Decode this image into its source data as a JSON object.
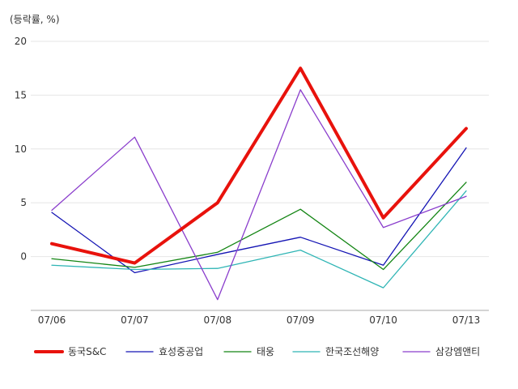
{
  "chart_data": {
    "type": "line",
    "unit_label": "(등락률, %)",
    "categories": [
      "07/06",
      "07/07",
      "07/08",
      "07/09",
      "07/10",
      "07/13"
    ],
    "ylim": [
      -5,
      20
    ],
    "yticks": [
      0,
      5,
      10,
      15,
      20
    ],
    "grid": true,
    "legend_position": "bottom",
    "series": [
      {
        "name": "동국S&C",
        "color": "#e8120c",
        "values": [
          1.2,
          -0.6,
          5.0,
          17.5,
          3.6,
          11.9
        ],
        "emphasis": true
      },
      {
        "name": "효성중공업",
        "color": "#1414b4",
        "values": [
          4.1,
          -1.5,
          0.2,
          1.8,
          -0.8,
          10.1
        ]
      },
      {
        "name": "태웅",
        "color": "#138513",
        "values": [
          -0.2,
          -1.0,
          0.4,
          4.4,
          -1.2,
          6.9
        ]
      },
      {
        "name": "한국조선해양",
        "color": "#2fb5b5",
        "values": [
          -0.8,
          -1.2,
          -1.1,
          0.6,
          -2.9,
          6.1
        ]
      },
      {
        "name": "삼강엠앤티",
        "color": "#8a3dcc",
        "values": [
          4.3,
          11.1,
          -4.0,
          15.5,
          2.7,
          5.6
        ]
      }
    ]
  }
}
